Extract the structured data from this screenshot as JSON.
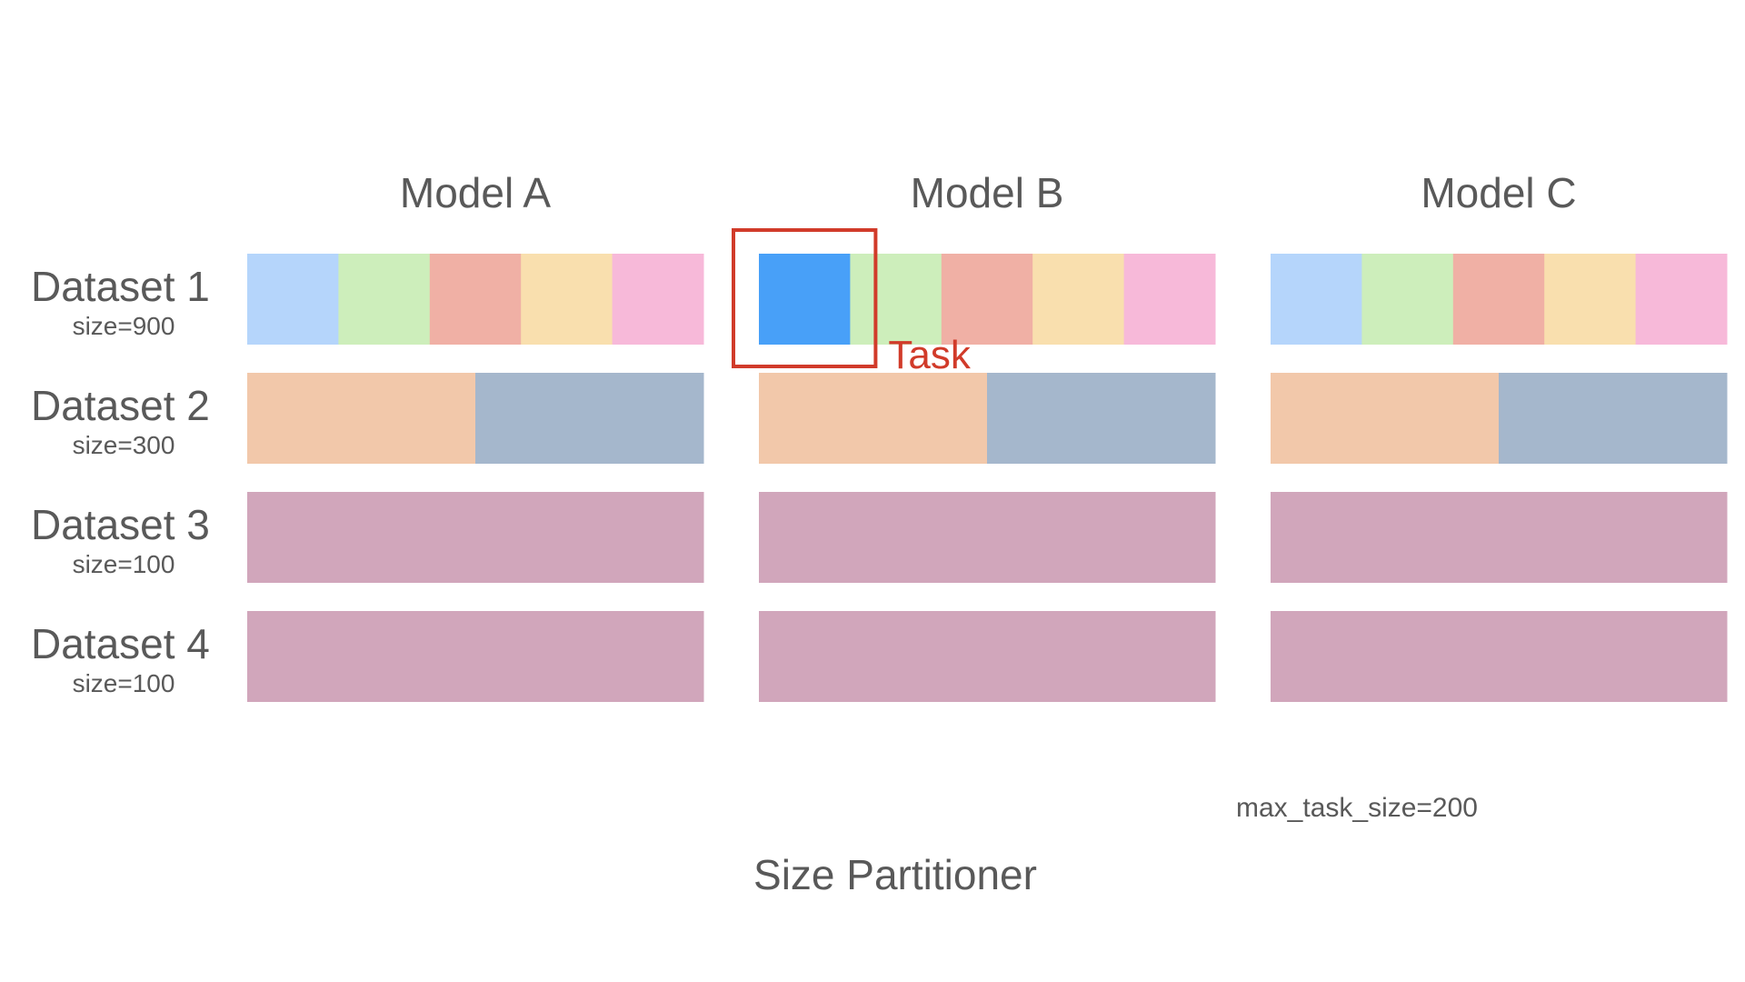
{
  "caption": "Size Partitioner",
  "note": "max_task_size=200",
  "task_label": "Task",
  "models": [
    {
      "name": "Model A"
    },
    {
      "name": "Model B"
    },
    {
      "name": "Model C"
    }
  ],
  "datasets": [
    {
      "name": "Dataset 1",
      "size_label": "size=900",
      "chunks": 5,
      "colors": [
        "#b5d5fb",
        "#cdeebb",
        "#f0b0a5",
        "#f9dfae",
        "#f7b9d9"
      ]
    },
    {
      "name": "Dataset 2",
      "size_label": "size=300",
      "chunks": 2,
      "colors": [
        "#f2c8aa",
        "#a5b7cc"
      ]
    },
    {
      "name": "Dataset 3",
      "size_label": "size=100",
      "chunks": 1,
      "colors": [
        "#d1a6bb"
      ]
    },
    {
      "name": "Dataset 4",
      "size_label": "size=100",
      "chunks": 1,
      "colors": [
        "#d1a6bb"
      ]
    }
  ],
  "highlight": {
    "model_index": 1,
    "dataset_index": 0,
    "chunk_index": 0,
    "color": "#48a0f8",
    "box_color": "#d13b2a"
  }
}
